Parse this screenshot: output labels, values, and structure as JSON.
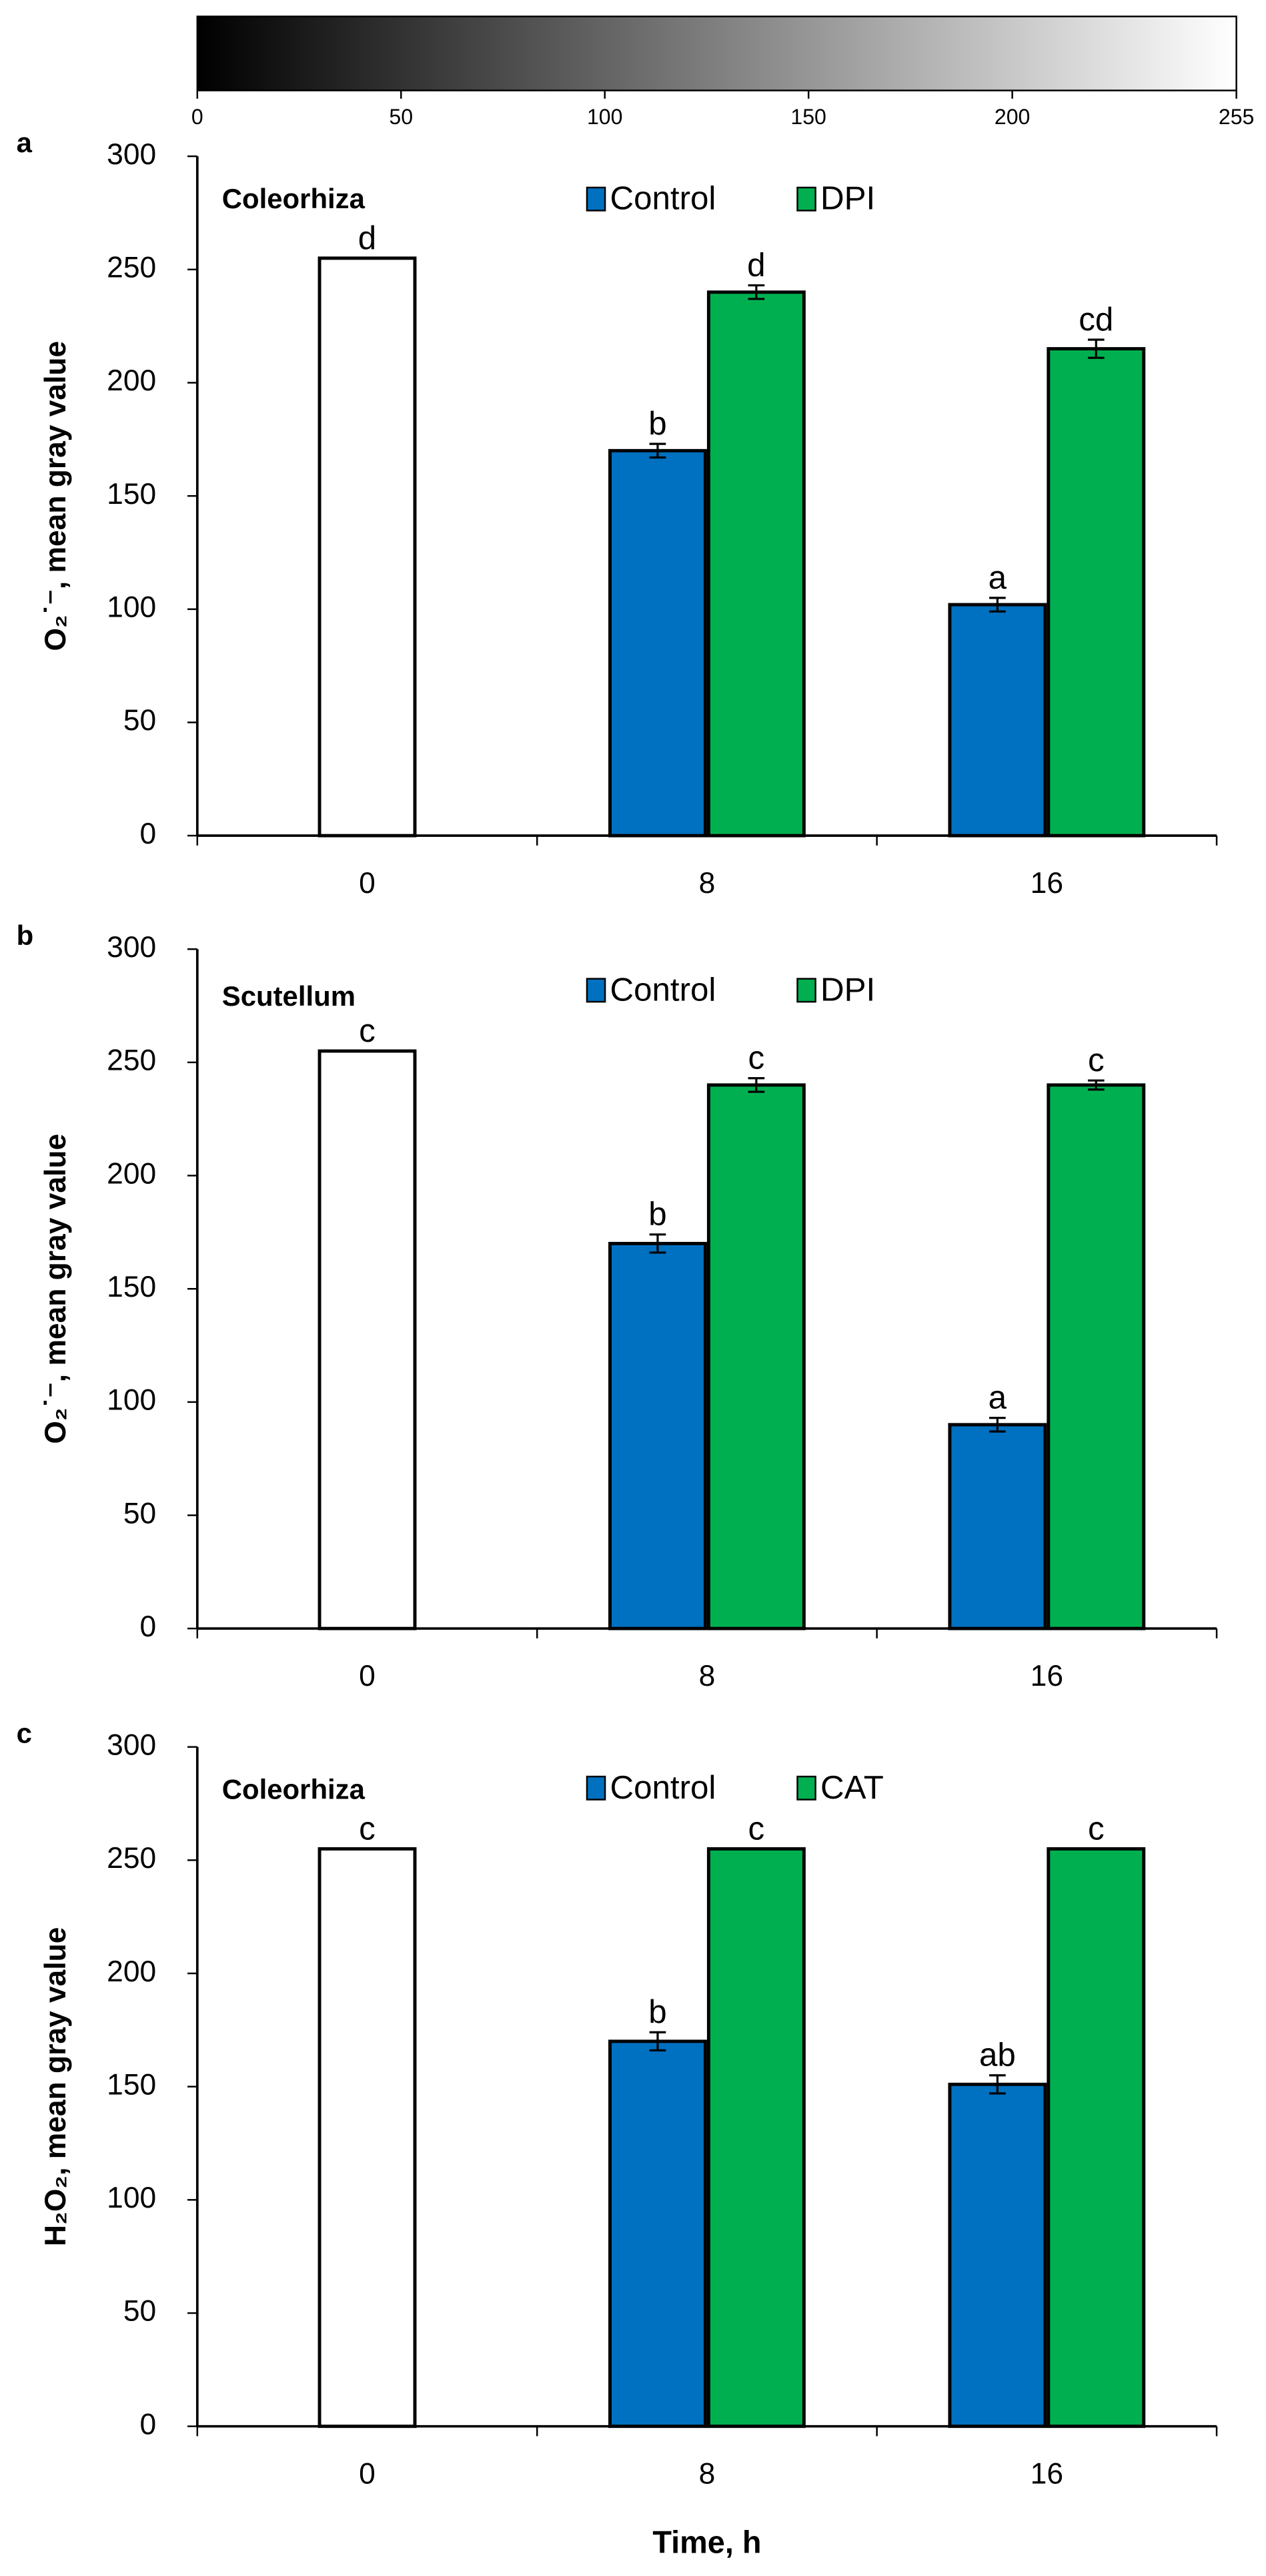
{
  "chart_data": [
    {
      "type": "colorbar",
      "colors": [
        "#000000",
        "#ffffff"
      ],
      "xlim": [
        0,
        255
      ],
      "xticks": [
        0,
        50,
        100,
        150,
        200,
        255
      ]
    },
    {
      "type": "bar",
      "panel": "a",
      "subtitle": "Coleorhiza",
      "ylabel": "O₂˙⁻, mean gray value",
      "categories": [
        "0",
        "8",
        "16"
      ],
      "ylim": [
        0,
        300
      ],
      "yticks": [
        0,
        50,
        100,
        150,
        200,
        250,
        300
      ],
      "series": [
        {
          "color": "#ffffff",
          "values": [
            255,
            null,
            null
          ],
          "labels": [
            "d",
            null,
            null
          ]
        },
        {
          "name": "Control",
          "color": "#0070c0",
          "values": [
            null,
            170,
            102
          ],
          "errors": [
            null,
            3,
            3
          ],
          "labels": [
            null,
            "b",
            "a"
          ]
        },
        {
          "name": "DPI",
          "color": "#00b050",
          "values": [
            null,
            240,
            215
          ],
          "errors": [
            null,
            3,
            4
          ],
          "labels": [
            null,
            "d",
            "cd"
          ]
        }
      ]
    },
    {
      "type": "bar",
      "panel": "b",
      "subtitle": "Scutellum",
      "ylabel": "O₂˙⁻, mean gray value",
      "categories": [
        "0",
        "8",
        "16"
      ],
      "ylim": [
        0,
        300
      ],
      "yticks": [
        0,
        50,
        100,
        150,
        200,
        250,
        300
      ],
      "series": [
        {
          "color": "#ffffff",
          "values": [
            255,
            null,
            null
          ],
          "labels": [
            "c",
            null,
            null
          ]
        },
        {
          "name": "Control",
          "color": "#0070c0",
          "values": [
            null,
            170,
            90
          ],
          "errors": [
            null,
            4,
            3
          ],
          "labels": [
            null,
            "b",
            "a"
          ]
        },
        {
          "name": "DPI",
          "color": "#00b050",
          "values": [
            null,
            240,
            240
          ],
          "errors": [
            null,
            3,
            2
          ],
          "labels": [
            null,
            "c",
            "c"
          ]
        }
      ]
    },
    {
      "type": "bar",
      "panel": "c",
      "subtitle": "Coleorhiza",
      "ylabel": "H₂O₂, mean gray value",
      "xlabel": "Time, h",
      "categories": [
        "0",
        "8",
        "16"
      ],
      "ylim": [
        0,
        300
      ],
      "yticks": [
        0,
        50,
        100,
        150,
        200,
        250,
        300
      ],
      "series": [
        {
          "color": "#ffffff",
          "values": [
            255,
            null,
            null
          ],
          "labels": [
            "c",
            null,
            null
          ]
        },
        {
          "name": "Control",
          "color": "#0070c0",
          "values": [
            null,
            170,
            151
          ],
          "errors": [
            null,
            4,
            4
          ],
          "labels": [
            null,
            "b",
            "ab"
          ]
        },
        {
          "name": "CAT",
          "color": "#00b050",
          "values": [
            null,
            255,
            255
          ],
          "errors": [
            null,
            0,
            0
          ],
          "labels": [
            null,
            "c",
            "c"
          ]
        }
      ]
    }
  ]
}
